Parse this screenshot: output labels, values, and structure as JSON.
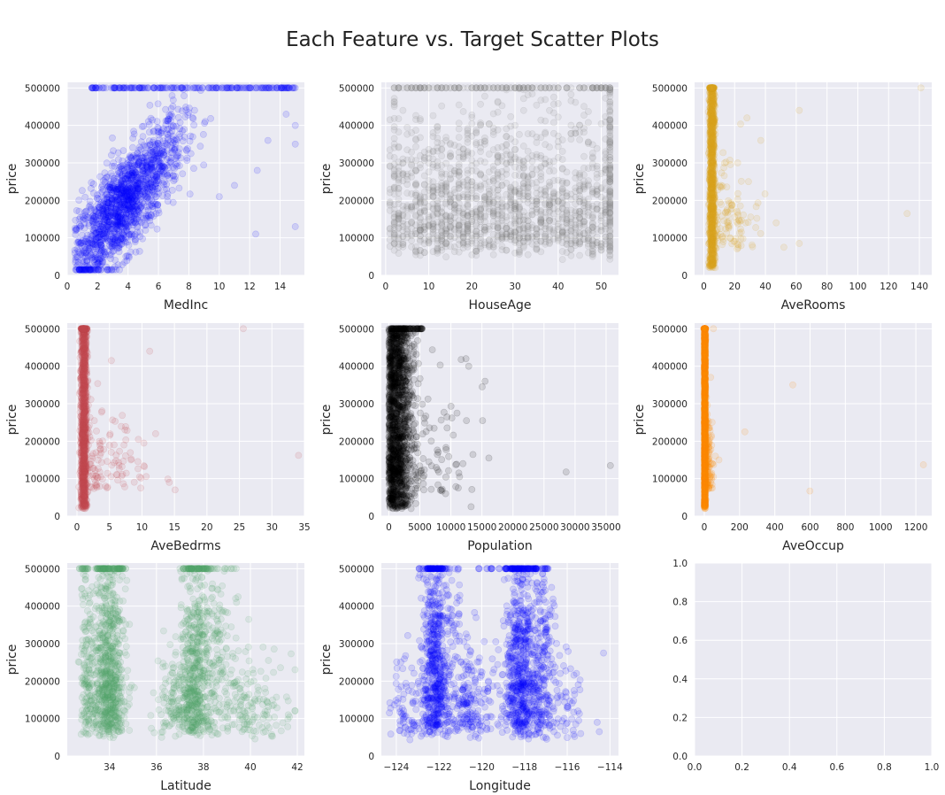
{
  "title": "Each Feature vs. Target Scatter Plots",
  "chart_data": [
    {
      "type": "scatter",
      "xlabel": "MedInc",
      "ylabel": "price",
      "color": "#0000ff",
      "pattern": "medinc",
      "xlim": [
        0,
        15.6
      ],
      "ylim": [
        0,
        515000
      ],
      "xticks": [
        0,
        2,
        4,
        6,
        8,
        10,
        12,
        14
      ],
      "xtick_labels": [
        "0",
        "2",
        "4",
        "6",
        "8",
        "10",
        "12",
        "14"
      ],
      "yticks": [
        0,
        100000,
        200000,
        300000,
        400000,
        500000
      ],
      "ytick_labels": [
        "0",
        "100000",
        "200000",
        "300000",
        "400000",
        "500000"
      ],
      "outliers": [
        [
          15,
          500001
        ],
        [
          15,
          400000
        ],
        [
          15,
          350000
        ],
        [
          15,
          130000
        ],
        [
          12.5,
          280000
        ],
        [
          11,
          240000
        ],
        [
          10,
          210000
        ],
        [
          13.2,
          360000
        ],
        [
          12.4,
          110000
        ],
        [
          14.4,
          430000
        ]
      ]
    },
    {
      "type": "scatter",
      "xlabel": "HouseAge",
      "ylabel": "price",
      "color": "#808080",
      "pattern": "houseage",
      "xlim": [
        -1,
        54
      ],
      "ylim": [
        0,
        515000
      ],
      "xticks": [
        0,
        10,
        20,
        30,
        40,
        50
      ],
      "xtick_labels": [
        "0",
        "10",
        "20",
        "30",
        "40",
        "50"
      ],
      "yticks": [
        0,
        100000,
        200000,
        300000,
        400000,
        500000
      ],
      "ytick_labels": [
        "0",
        "100000",
        "200000",
        "300000",
        "400000",
        "500000"
      ],
      "outliers": []
    },
    {
      "type": "scatter",
      "xlabel": "AveRooms",
      "ylabel": "price",
      "color": "#daa520",
      "pattern": "spike",
      "xlim": [
        -6,
        148
      ],
      "ylim": [
        0,
        515000
      ],
      "xticks": [
        0,
        20,
        40,
        60,
        80,
        100,
        120,
        140
      ],
      "xtick_labels": [
        "0",
        "20",
        "40",
        "60",
        "80",
        "100",
        "120",
        "140"
      ],
      "yticks": [
        0,
        100000,
        200000,
        300000,
        400000,
        500000
      ],
      "ytick_labels": [
        "0",
        "100000",
        "200000",
        "300000",
        "400000",
        "500000"
      ],
      "spike": {
        "center": 5.3,
        "width": 1.8,
        "tail": 30
      },
      "outliers": [
        [
          141,
          500001
        ],
        [
          132,
          165000
        ],
        [
          62,
          440000
        ],
        [
          62,
          85000
        ],
        [
          52,
          75000
        ],
        [
          47,
          140000
        ],
        [
          37,
          360000
        ],
        [
          28,
          420000
        ],
        [
          29,
          250000
        ],
        [
          22,
          300000
        ]
      ]
    },
    {
      "type": "scatter",
      "xlabel": "AveBedrms",
      "ylabel": "price",
      "color": "#c44e52",
      "pattern": "spike",
      "xlim": [
        -1.5,
        35
      ],
      "ylim": [
        0,
        515000
      ],
      "xticks": [
        0,
        5,
        10,
        15,
        20,
        25,
        30,
        35
      ],
      "xtick_labels": [
        "0",
        "5",
        "10",
        "15",
        "20",
        "25",
        "30",
        "35"
      ],
      "yticks": [
        0,
        100000,
        200000,
        300000,
        400000,
        500000
      ],
      "ytick_labels": [
        "0",
        "100000",
        "200000",
        "300000",
        "400000",
        "500000"
      ],
      "spike": {
        "center": 1.05,
        "width": 0.5,
        "tail": 9
      },
      "outliers": [
        [
          25.6,
          500001
        ],
        [
          34.1,
          162000
        ],
        [
          15.1,
          70000
        ],
        [
          14.2,
          90000
        ],
        [
          11.2,
          440000
        ],
        [
          12.1,
          220000
        ],
        [
          9.8,
          75000
        ],
        [
          10.3,
          195000
        ],
        [
          5.3,
          415000
        ],
        [
          7.4,
          230000
        ]
      ]
    },
    {
      "type": "scatter",
      "xlabel": "Population",
      "ylabel": "price",
      "color": "#000000",
      "pattern": "population",
      "xlim": [
        -1200,
        37000
      ],
      "ylim": [
        0,
        515000
      ],
      "xticks": [
        0,
        5000,
        10000,
        15000,
        20000,
        25000,
        30000,
        35000
      ],
      "xtick_labels": [
        "0",
        "5000",
        "10000",
        "15000",
        "20000",
        "25000",
        "30000",
        "35000"
      ],
      "yticks": [
        0,
        100000,
        200000,
        300000,
        400000,
        500000
      ],
      "ytick_labels": [
        "0",
        "100000",
        "200000",
        "300000",
        "400000",
        "500000"
      ],
      "outliers": [
        [
          35682,
          135000
        ],
        [
          28566,
          118000
        ],
        [
          16122,
          155000
        ],
        [
          15507,
          360000
        ],
        [
          15037,
          345000
        ],
        [
          13251,
          25000
        ],
        [
          12873,
          400000
        ],
        [
          12427,
          420000
        ],
        [
          11935,
          140000
        ],
        [
          11272,
          115000
        ],
        [
          10988,
          275000
        ],
        [
          15100,
          255000
        ]
      ]
    },
    {
      "type": "scatter",
      "xlabel": "AveOccup",
      "ylabel": "price",
      "color": "#ff8c00",
      "pattern": "spike",
      "xlim": [
        -55,
        1290
      ],
      "ylim": [
        0,
        515000
      ],
      "xticks": [
        0,
        200,
        400,
        600,
        800,
        1000,
        1200
      ],
      "xtick_labels": [
        "0",
        "200",
        "400",
        "600",
        "800",
        "1000",
        "1200"
      ],
      "yticks": [
        0,
        100000,
        200000,
        300000,
        400000,
        500000
      ],
      "ytick_labels": [
        "0",
        "100000",
        "200000",
        "300000",
        "400000",
        "500000"
      ],
      "spike": {
        "center": 3,
        "width": 5,
        "tail": 40
      },
      "outliers": [
        [
          1243,
          137000
        ],
        [
          599,
          67000
        ],
        [
          502,
          350000
        ],
        [
          230,
          225000
        ],
        [
          83,
          150000
        ],
        [
          63,
          160000
        ],
        [
          52,
          500001
        ],
        [
          33,
          115000
        ]
      ]
    },
    {
      "type": "scatter",
      "xlabel": "Latitude",
      "ylabel": "price",
      "color": "#55a868",
      "pattern": "latitude",
      "xlim": [
        32.2,
        42.3
      ],
      "ylim": [
        0,
        515000
      ],
      "xticks": [
        34,
        36,
        38,
        40,
        42
      ],
      "xtick_labels": [
        "34",
        "36",
        "38",
        "40",
        "42"
      ],
      "yticks": [
        0,
        100000,
        200000,
        300000,
        400000,
        500000
      ],
      "ytick_labels": [
        "0",
        "100000",
        "200000",
        "300000",
        "400000",
        "500000"
      ],
      "outliers": []
    },
    {
      "type": "scatter",
      "xlabel": "Longitude",
      "ylabel": "price",
      "color": "#0000ff",
      "pattern": "longitude",
      "xlim": [
        -124.7,
        -113.6
      ],
      "ylim": [
        0,
        515000
      ],
      "xticks": [
        -124,
        -122,
        -120,
        -118,
        -116,
        -114
      ],
      "xtick_labels": [
        "−124",
        "−122",
        "−120",
        "−118",
        "−116",
        "−114"
      ],
      "yticks": [
        0,
        100000,
        200000,
        300000,
        400000,
        500000
      ],
      "ytick_labels": [
        "0",
        "100000",
        "200000",
        "300000",
        "400000",
        "500000"
      ],
      "outliers": [
        [
          -114.3,
          275000
        ],
        [
          -114.5,
          65000
        ],
        [
          -114.6,
          90000
        ],
        [
          -115.5,
          120000
        ],
        [
          -115.6,
          85000
        ]
      ]
    },
    {
      "type": "scatter",
      "xlabel": "",
      "ylabel": "",
      "color": "#4c72b0",
      "pattern": "empty",
      "xlim": [
        0,
        1
      ],
      "ylim": [
        0,
        1
      ],
      "xticks": [
        0,
        0.2,
        0.4,
        0.6,
        0.8,
        1.0
      ],
      "xtick_labels": [
        "0.0",
        "0.2",
        "0.4",
        "0.6",
        "0.8",
        "1.0"
      ],
      "yticks": [
        0,
        0.2,
        0.4,
        0.6,
        0.8,
        1.0
      ],
      "ytick_labels": [
        "0.0",
        "0.2",
        "0.4",
        "0.6",
        "0.8",
        "1.0"
      ],
      "outliers": []
    }
  ]
}
